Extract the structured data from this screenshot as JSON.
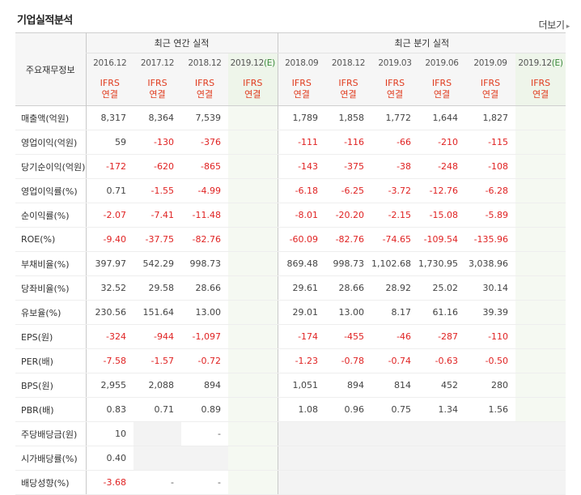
{
  "header": {
    "title": "기업실적분석",
    "more_label": "더보기"
  },
  "table": {
    "row_header_label": "주요재무정보",
    "annual_group_label": "최근 연간 실적",
    "quarter_group_label": "최근 분기 실적",
    "annual_periods": [
      "2016.12",
      "2017.12",
      "2018.12",
      "2019.12"
    ],
    "quarter_periods": [
      "2018.09",
      "2018.12",
      "2019.03",
      "2019.06",
      "2019.09",
      "2019.12"
    ],
    "estimate_mark": "(E)",
    "basis_line1": "IFRS",
    "basis_line2": "연결",
    "rows": [
      {
        "label": "매출액(억원)",
        "annual": [
          "8,317",
          "8,364",
          "7,539",
          ""
        ],
        "quarter": [
          "1,789",
          "1,858",
          "1,772",
          "1,644",
          "1,827",
          ""
        ]
      },
      {
        "label": "영업이익(억원)",
        "annual": [
          "59",
          "-130",
          "-376",
          ""
        ],
        "quarter": [
          "-111",
          "-116",
          "-66",
          "-210",
          "-115",
          ""
        ]
      },
      {
        "label": "당기순이익(억원)",
        "annual": [
          "-172",
          "-620",
          "-865",
          ""
        ],
        "quarter": [
          "-143",
          "-375",
          "-38",
          "-248",
          "-108",
          ""
        ]
      },
      {
        "label": "영업이익률(%)",
        "annual": [
          "0.71",
          "-1.55",
          "-4.99",
          ""
        ],
        "quarter": [
          "-6.18",
          "-6.25",
          "-3.72",
          "-12.76",
          "-6.28",
          ""
        ]
      },
      {
        "label": "순이익률(%)",
        "annual": [
          "-2.07",
          "-7.41",
          "-11.48",
          ""
        ],
        "quarter": [
          "-8.01",
          "-20.20",
          "-2.15",
          "-15.08",
          "-5.89",
          ""
        ]
      },
      {
        "label": "ROE(%)",
        "annual": [
          "-9.40",
          "-37.75",
          "-82.76",
          ""
        ],
        "quarter": [
          "-60.09",
          "-82.76",
          "-74.65",
          "-109.54",
          "-135.96",
          ""
        ]
      },
      {
        "label": "부채비율(%)",
        "annual": [
          "397.97",
          "542.29",
          "998.73",
          ""
        ],
        "quarter": [
          "869.48",
          "998.73",
          "1,102.68",
          "1,730.95",
          "3,038.96",
          ""
        ]
      },
      {
        "label": "당좌비율(%)",
        "annual": [
          "32.52",
          "29.58",
          "28.66",
          ""
        ],
        "quarter": [
          "29.61",
          "28.66",
          "28.92",
          "25.02",
          "30.14",
          ""
        ]
      },
      {
        "label": "유보율(%)",
        "annual": [
          "230.56",
          "151.64",
          "13.00",
          ""
        ],
        "quarter": [
          "29.01",
          "13.00",
          "8.17",
          "61.16",
          "39.39",
          ""
        ]
      },
      {
        "label": "EPS(원)",
        "annual": [
          "-324",
          "-944",
          "-1,097",
          ""
        ],
        "quarter": [
          "-174",
          "-455",
          "-46",
          "-287",
          "-110",
          ""
        ]
      },
      {
        "label": "PER(배)",
        "annual": [
          "-7.58",
          "-1.57",
          "-0.72",
          ""
        ],
        "quarter": [
          "-1.23",
          "-0.78",
          "-0.74",
          "-0.63",
          "-0.50",
          ""
        ]
      },
      {
        "label": "BPS(원)",
        "annual": [
          "2,955",
          "2,088",
          "894",
          ""
        ],
        "quarter": [
          "1,051",
          "894",
          "814",
          "452",
          "280",
          ""
        ]
      },
      {
        "label": "PBR(배)",
        "annual": [
          "0.83",
          "0.71",
          "0.89",
          ""
        ],
        "quarter": [
          "1.08",
          "0.96",
          "0.75",
          "1.34",
          "1.56",
          ""
        ]
      },
      {
        "label": "주당배당금(원)",
        "annual": [
          "10",
          "",
          "-",
          ""
        ],
        "quarter": [
          "",
          "",
          "",
          "",
          "",
          ""
        ]
      },
      {
        "label": "시가배당률(%)",
        "annual": [
          "0.40",
          "",
          "",
          ""
        ],
        "quarter": [
          "",
          "",
          "",
          "",
          "",
          ""
        ]
      },
      {
        "label": "배당성향(%)",
        "annual": [
          "-3.68",
          "-",
          "-",
          ""
        ],
        "quarter": [
          "",
          "",
          "",
          "",
          "",
          ""
        ]
      }
    ]
  }
}
